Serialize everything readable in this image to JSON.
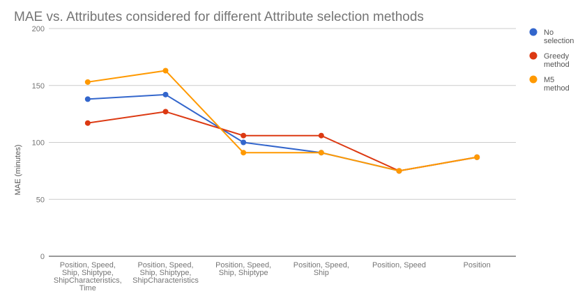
{
  "chart_data": {
    "type": "line",
    "title": "MAE vs. Attributes considered for different Attribute selection methods",
    "xlabel": "",
    "ylabel": "MAE (minutes)",
    "ylim": [
      0,
      200
    ],
    "yticks": [
      0,
      50,
      100,
      150,
      200
    ],
    "grid": true,
    "legend_position": "right",
    "categories": [
      [
        "Position, Speed,",
        "Ship, Shiptype,",
        "ShipCharacteristics,",
        "Time"
      ],
      [
        "Position, Speed,",
        "Ship, Shiptype,",
        "ShipCharacteristics"
      ],
      [
        "Position, Speed,",
        "Ship, Shiptype"
      ],
      [
        "Position, Speed,",
        "Ship"
      ],
      [
        "Position, Speed"
      ],
      [
        "Position"
      ]
    ],
    "series": [
      {
        "name": [
          "No",
          "selection"
        ],
        "color": "#3366cc",
        "values": [
          138,
          142,
          100,
          91,
          75,
          87
        ]
      },
      {
        "name": [
          "Greedy",
          "method"
        ],
        "color": "#dc3912",
        "values": [
          117,
          127,
          106,
          106,
          75,
          87
        ]
      },
      {
        "name": [
          "M5",
          "method"
        ],
        "color": "#ff9900",
        "values": [
          153,
          163,
          91,
          91,
          75,
          87
        ]
      }
    ]
  }
}
